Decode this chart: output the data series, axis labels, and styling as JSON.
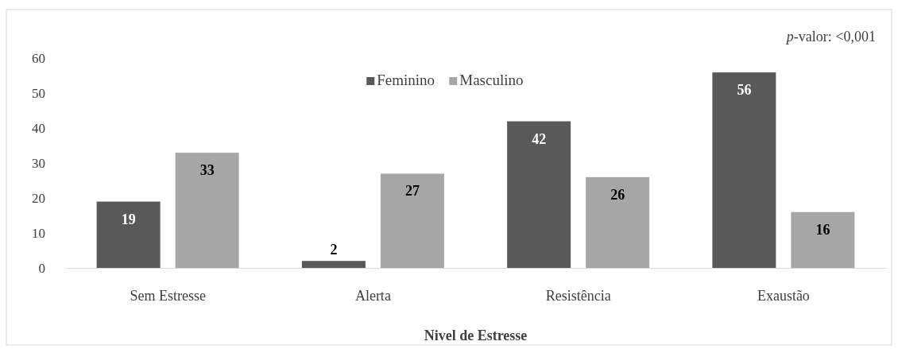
{
  "chart_data": {
    "type": "bar",
    "xlabel": "Nivel de Estresse",
    "annotations": [
      "p-valor: <0,001"
    ],
    "categories": [
      "Sem Estresse",
      "Alerta",
      "Resistência",
      "Exaustão"
    ],
    "series": [
      {
        "name": "Feminino",
        "color": "#595959",
        "values": [
          19,
          2,
          42,
          56
        ]
      },
      {
        "name": "Masculino",
        "color": "#a6a6a6",
        "values": [
          33,
          27,
          26,
          16
        ]
      }
    ],
    "ylim": [
      0,
      60
    ],
    "yticks": [
      0,
      10,
      20,
      30,
      40,
      50,
      60
    ],
    "grid": false,
    "legend": "top",
    "data_labels": true
  }
}
